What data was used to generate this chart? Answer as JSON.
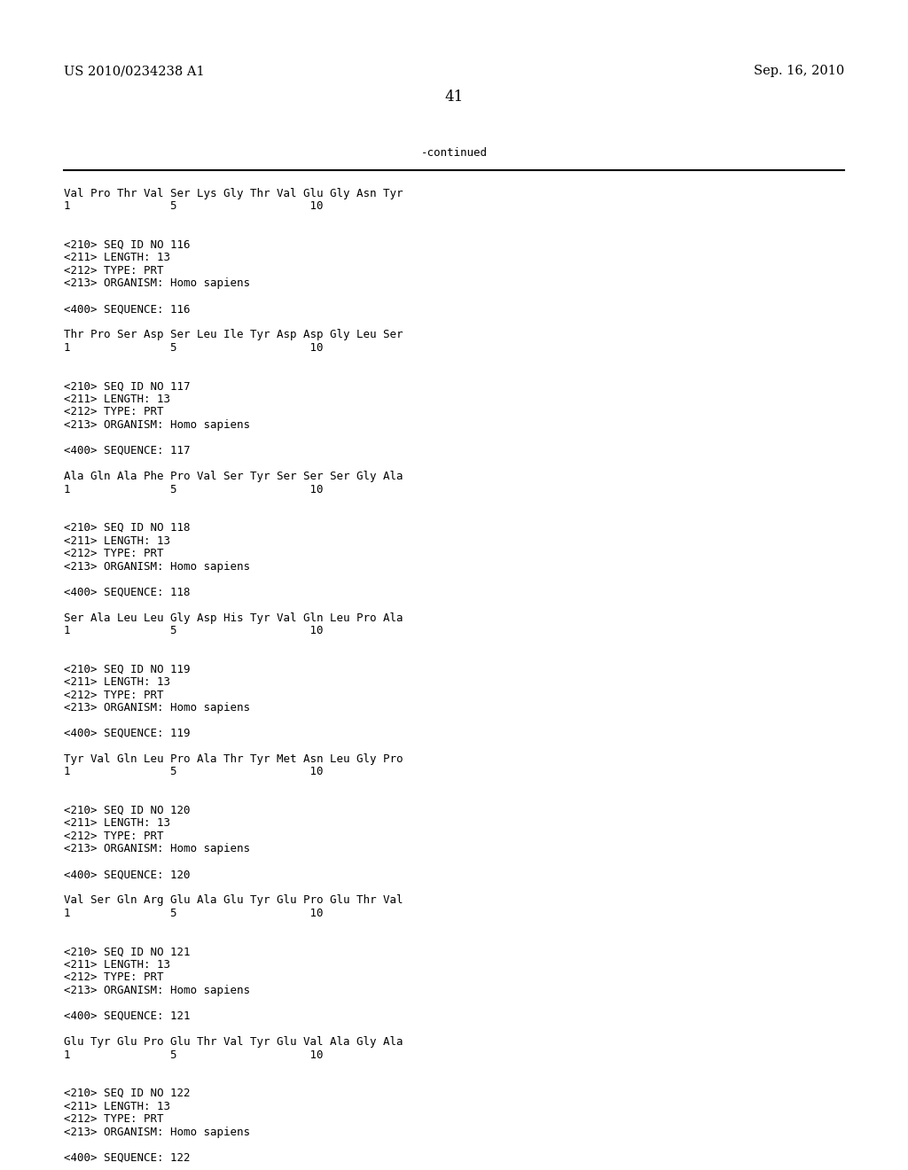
{
  "background_color": "#ffffff",
  "top_left_text": "US 2010/0234238 A1",
  "top_right_text": "Sep. 16, 2010",
  "page_number": "41",
  "continued_label": "-continued",
  "monospace_fontsize": 9.0,
  "header_fontsize": 10.5,
  "page_num_fontsize": 12,
  "content": [
    "Val Pro Thr Val Ser Lys Gly Thr Val Glu Gly Asn Tyr",
    "1               5                    10",
    "",
    "",
    "<210> SEQ ID NO 116",
    "<211> LENGTH: 13",
    "<212> TYPE: PRT",
    "<213> ORGANISM: Homo sapiens",
    "",
    "<400> SEQUENCE: 116",
    "",
    "Thr Pro Ser Asp Ser Leu Ile Tyr Asp Asp Gly Leu Ser",
    "1               5                    10",
    "",
    "",
    "<210> SEQ ID NO 117",
    "<211> LENGTH: 13",
    "<212> TYPE: PRT",
    "<213> ORGANISM: Homo sapiens",
    "",
    "<400> SEQUENCE: 117",
    "",
    "Ala Gln Ala Phe Pro Val Ser Tyr Ser Ser Ser Gly Ala",
    "1               5                    10",
    "",
    "",
    "<210> SEQ ID NO 118",
    "<211> LENGTH: 13",
    "<212> TYPE: PRT",
    "<213> ORGANISM: Homo sapiens",
    "",
    "<400> SEQUENCE: 118",
    "",
    "Ser Ala Leu Leu Gly Asp His Tyr Val Gln Leu Pro Ala",
    "1               5                    10",
    "",
    "",
    "<210> SEQ ID NO 119",
    "<211> LENGTH: 13",
    "<212> TYPE: PRT",
    "<213> ORGANISM: Homo sapiens",
    "",
    "<400> SEQUENCE: 119",
    "",
    "Tyr Val Gln Leu Pro Ala Thr Tyr Met Asn Leu Gly Pro",
    "1               5                    10",
    "",
    "",
    "<210> SEQ ID NO 120",
    "<211> LENGTH: 13",
    "<212> TYPE: PRT",
    "<213> ORGANISM: Homo sapiens",
    "",
    "<400> SEQUENCE: 120",
    "",
    "Val Ser Gln Arg Glu Ala Glu Tyr Glu Pro Glu Thr Val",
    "1               5                    10",
    "",
    "",
    "<210> SEQ ID NO 121",
    "<211> LENGTH: 13",
    "<212> TYPE: PRT",
    "<213> ORGANISM: Homo sapiens",
    "",
    "<400> SEQUENCE: 121",
    "",
    "Glu Tyr Glu Pro Glu Thr Val Tyr Glu Val Ala Gly Ala",
    "1               5                    10",
    "",
    "",
    "<210> SEQ ID NO 122",
    "<211> LENGTH: 13",
    "<212> TYPE: PRT",
    "<213> ORGANISM: Homo sapiens",
    "",
    "<400> SEQUENCE: 122"
  ]
}
